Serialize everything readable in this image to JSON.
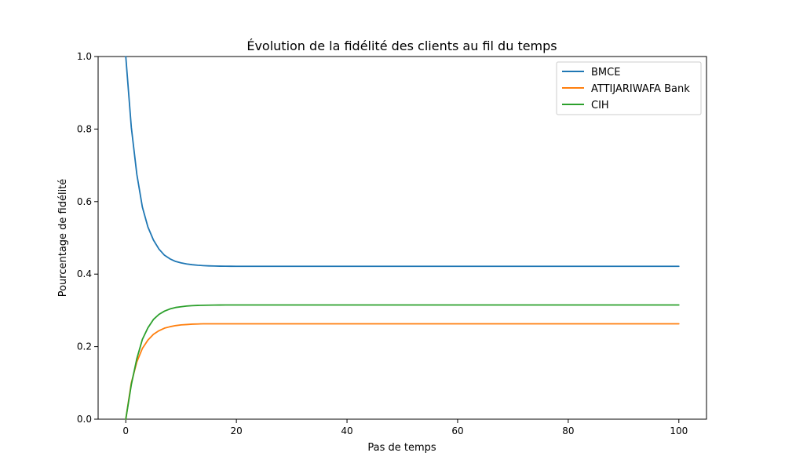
{
  "chart_data": {
    "type": "line",
    "title": "Évolution de la fidélité des clients au fil du temps",
    "xlabel": "Pas de temps",
    "ylabel": "Pourcentage de fidélité",
    "xlim": [
      -5,
      105
    ],
    "ylim": [
      0,
      1
    ],
    "xticks": [
      0,
      20,
      40,
      60,
      80,
      100
    ],
    "xtick_labels": [
      "0",
      "20",
      "40",
      "60",
      "80",
      "100"
    ],
    "yticks": [
      0,
      0.2,
      0.4,
      0.6,
      0.8,
      1.0
    ],
    "ytick_labels": [
      "0.0",
      "0.2",
      "0.4",
      "0.6",
      "0.8",
      "1.0"
    ],
    "grid": false,
    "legend_position": "top-right",
    "x": [
      0,
      1,
      2,
      3,
      4,
      5,
      6,
      7,
      8,
      9,
      10,
      11,
      12,
      13,
      14,
      15,
      16,
      17,
      18,
      19,
      20,
      25,
      30,
      40,
      50,
      60,
      70,
      80,
      90,
      100
    ],
    "series": [
      {
        "name": "BMCE",
        "color": "#1f77b4",
        "values": [
          1.0,
          0.805,
          0.675,
          0.585,
          0.53,
          0.494,
          0.469,
          0.452,
          0.442,
          0.435,
          0.431,
          0.428,
          0.426,
          0.4245,
          0.4235,
          0.4228,
          0.4223,
          0.422,
          0.4218,
          0.4217,
          0.4216,
          0.4215,
          0.4215,
          0.4215,
          0.4215,
          0.4215,
          0.4215,
          0.4215,
          0.4215,
          0.4215
        ]
      },
      {
        "name": "ATTIJARIWAFA Bank",
        "color": "#ff7f0e",
        "values": [
          0.0,
          0.1,
          0.158,
          0.195,
          0.218,
          0.234,
          0.244,
          0.251,
          0.255,
          0.258,
          0.26,
          0.261,
          0.262,
          0.2625,
          0.263,
          0.263,
          0.263,
          0.263,
          0.263,
          0.263,
          0.263,
          0.263,
          0.263,
          0.263,
          0.263,
          0.263,
          0.263,
          0.263,
          0.263,
          0.263
        ]
      },
      {
        "name": "CIH",
        "color": "#2ca02c",
        "values": [
          0.0,
          0.095,
          0.167,
          0.22,
          0.252,
          0.275,
          0.289,
          0.298,
          0.304,
          0.308,
          0.31,
          0.312,
          0.313,
          0.3137,
          0.3141,
          0.3144,
          0.3146,
          0.3148,
          0.3149,
          0.315,
          0.315,
          0.315,
          0.315,
          0.315,
          0.315,
          0.315,
          0.315,
          0.315,
          0.315,
          0.315
        ]
      }
    ]
  }
}
